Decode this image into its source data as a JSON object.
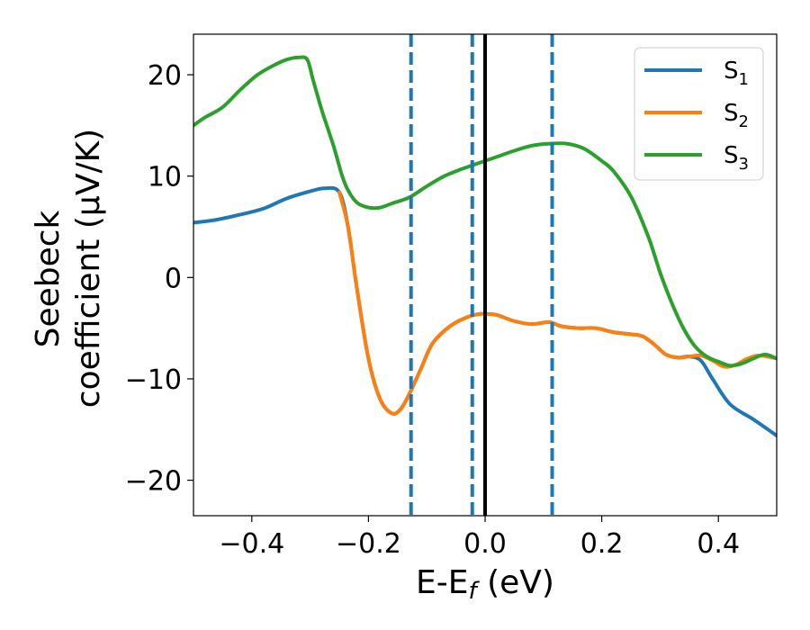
{
  "chart_data": {
    "type": "line",
    "xlabel": "E-E",
    "xlabel_sub": "f",
    "xlabel_unit": " (eV)",
    "ylabel_line1": "Seebeck",
    "ylabel_line2": "coefficient  (μV/K)",
    "xlim": [
      -0.5,
      0.5
    ],
    "ylim": [
      -23.5,
      24.0
    ],
    "xticks": [
      -0.4,
      -0.2,
      0.0,
      0.2,
      0.4
    ],
    "xtick_labels": [
      "−0.4",
      "−0.2",
      "0.0",
      "0.2",
      "0.4"
    ],
    "yticks": [
      -20,
      -10,
      0,
      10,
      20
    ],
    "ytick_labels": [
      "−20",
      "−10",
      "0",
      "10",
      "20"
    ],
    "legend_position": "top-right",
    "vertical_lines": [
      {
        "x": -0.127,
        "style": "dashed",
        "color": "#1f77b4"
      },
      {
        "x": -0.022,
        "style": "dashed",
        "color": "#1f77b4"
      },
      {
        "x": 0.0,
        "style": "solid",
        "color": "#000000"
      },
      {
        "x": 0.115,
        "style": "dashed",
        "color": "#1f77b4"
      }
    ],
    "series": [
      {
        "name": "S",
        "sub": "1",
        "color": "#1f77b4",
        "x": [
          -0.5,
          -0.46,
          -0.42,
          -0.38,
          -0.34,
          -0.3,
          -0.275,
          -0.25,
          -0.235,
          -0.22,
          -0.2,
          -0.18,
          -0.16,
          -0.145,
          -0.13,
          -0.11,
          -0.09,
          -0.06,
          -0.03,
          -0.01,
          0.0,
          0.02,
          0.05,
          0.08,
          0.11,
          0.13,
          0.16,
          0.19,
          0.22,
          0.25,
          0.27,
          0.29,
          0.31,
          0.33,
          0.35,
          0.37,
          0.39,
          0.42,
          0.46,
          0.5
        ],
        "y": [
          5.4,
          5.7,
          6.2,
          6.8,
          7.8,
          8.5,
          8.8,
          8.4,
          5.0,
          -1.0,
          -8.0,
          -12.0,
          -13.4,
          -13.0,
          -11.5,
          -9.0,
          -6.5,
          -4.8,
          -3.9,
          -3.6,
          -3.6,
          -3.7,
          -4.3,
          -4.6,
          -4.4,
          -4.8,
          -5.0,
          -5.0,
          -5.4,
          -5.6,
          -5.8,
          -6.6,
          -7.6,
          -7.9,
          -7.8,
          -8.2,
          -10.0,
          -12.5,
          -14.0,
          -15.6
        ]
      },
      {
        "name": "S",
        "sub": "2",
        "color": "#ff7f0e",
        "x": [
          -0.25,
          -0.235,
          -0.22,
          -0.2,
          -0.18,
          -0.16,
          -0.145,
          -0.13,
          -0.11,
          -0.09,
          -0.06,
          -0.03,
          -0.01,
          0.0,
          0.02,
          0.05,
          0.08,
          0.11,
          0.13,
          0.16,
          0.19,
          0.22,
          0.25,
          0.27,
          0.29,
          0.31,
          0.33,
          0.35,
          0.37,
          0.39,
          0.41,
          0.43,
          0.45,
          0.47,
          0.5
        ],
        "y": [
          8.4,
          5.0,
          -1.0,
          -8.0,
          -12.0,
          -13.4,
          -13.0,
          -11.5,
          -9.0,
          -6.5,
          -4.8,
          -3.9,
          -3.6,
          -3.6,
          -3.7,
          -4.3,
          -4.6,
          -4.4,
          -4.8,
          -5.0,
          -5.0,
          -5.4,
          -5.6,
          -5.8,
          -6.6,
          -7.6,
          -7.9,
          -7.8,
          -7.7,
          -8.2,
          -8.8,
          -8.6,
          -8.0,
          -7.7,
          -8.0
        ]
      },
      {
        "name": "S",
        "sub": "3",
        "color": "#2ca02c",
        "x": [
          -0.5,
          -0.48,
          -0.45,
          -0.42,
          -0.39,
          -0.36,
          -0.34,
          -0.32,
          -0.305,
          -0.295,
          -0.28,
          -0.26,
          -0.245,
          -0.235,
          -0.22,
          -0.2,
          -0.18,
          -0.16,
          -0.13,
          -0.1,
          -0.07,
          -0.04,
          -0.01,
          0.02,
          0.05,
          0.08,
          0.11,
          0.14,
          0.17,
          0.2,
          0.22,
          0.25,
          0.28,
          0.3,
          0.32,
          0.34,
          0.36,
          0.38,
          0.4,
          0.42,
          0.44,
          0.46,
          0.48,
          0.5
        ],
        "y": [
          15.0,
          15.8,
          16.8,
          18.5,
          20.0,
          21.0,
          21.5,
          21.7,
          21.5,
          19.5,
          16.5,
          13.0,
          10.0,
          8.6,
          7.4,
          6.9,
          6.9,
          7.3,
          7.9,
          9.0,
          10.0,
          10.7,
          11.3,
          11.9,
          12.5,
          13.0,
          13.2,
          13.2,
          12.7,
          11.5,
          10.5,
          8.0,
          4.0,
          0.5,
          -2.5,
          -5.0,
          -6.8,
          -7.8,
          -8.3,
          -8.7,
          -8.5,
          -8.0,
          -7.6,
          -8.0
        ]
      }
    ]
  }
}
